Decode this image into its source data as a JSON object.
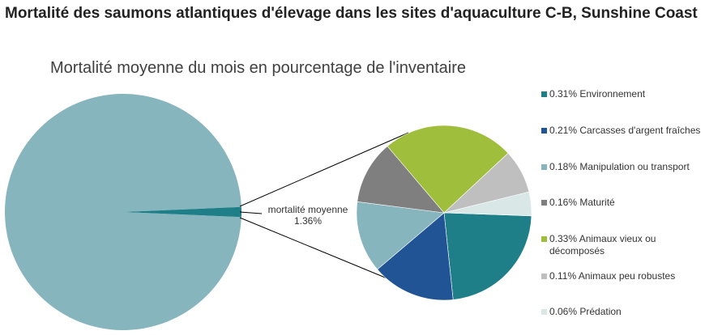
{
  "chart_data": {
    "type": "pie-of-pie",
    "title": "Mortalité des saumons atlantiques d'élevage dans les sites d'aquaculture C-B, Sunshine Coast",
    "subtitle": "Mortalité moyenne du mois en pourcentage de l'inventaire",
    "main_pie": {
      "slices": [
        {
          "label": "mortalité moyenne",
          "value": 1.36,
          "color": "#1f7f89"
        },
        {
          "value": 98.64,
          "color": "#87b5bd"
        }
      ]
    },
    "callout_label": "mortalité moyenne",
    "callout_value": "1.36%",
    "secondary_pie": {
      "slices": [
        {
          "label": "0.31% Environnement",
          "value": 0.31,
          "color": "#1f7f89"
        },
        {
          "label": "0.21% Carcasses d'argent fraîches",
          "value": 0.21,
          "color": "#215495"
        },
        {
          "label": "0.18% Manipulation ou transport",
          "value": 0.18,
          "color": "#87b5bd"
        },
        {
          "label": "0.16% Maturité",
          "value": 0.16,
          "color": "#7f7f7f"
        },
        {
          "label": "0.33% Animaux vieux ou décomposés",
          "value": 0.33,
          "color": "#9fbe3b"
        },
        {
          "label": "0.11% Animaux peu robustes",
          "value": 0.11,
          "color": "#bfbfbf"
        },
        {
          "label": "0.06% Prédation",
          "value": 0.06,
          "color": "#d9e8e6"
        }
      ]
    },
    "legend_position": "right"
  }
}
